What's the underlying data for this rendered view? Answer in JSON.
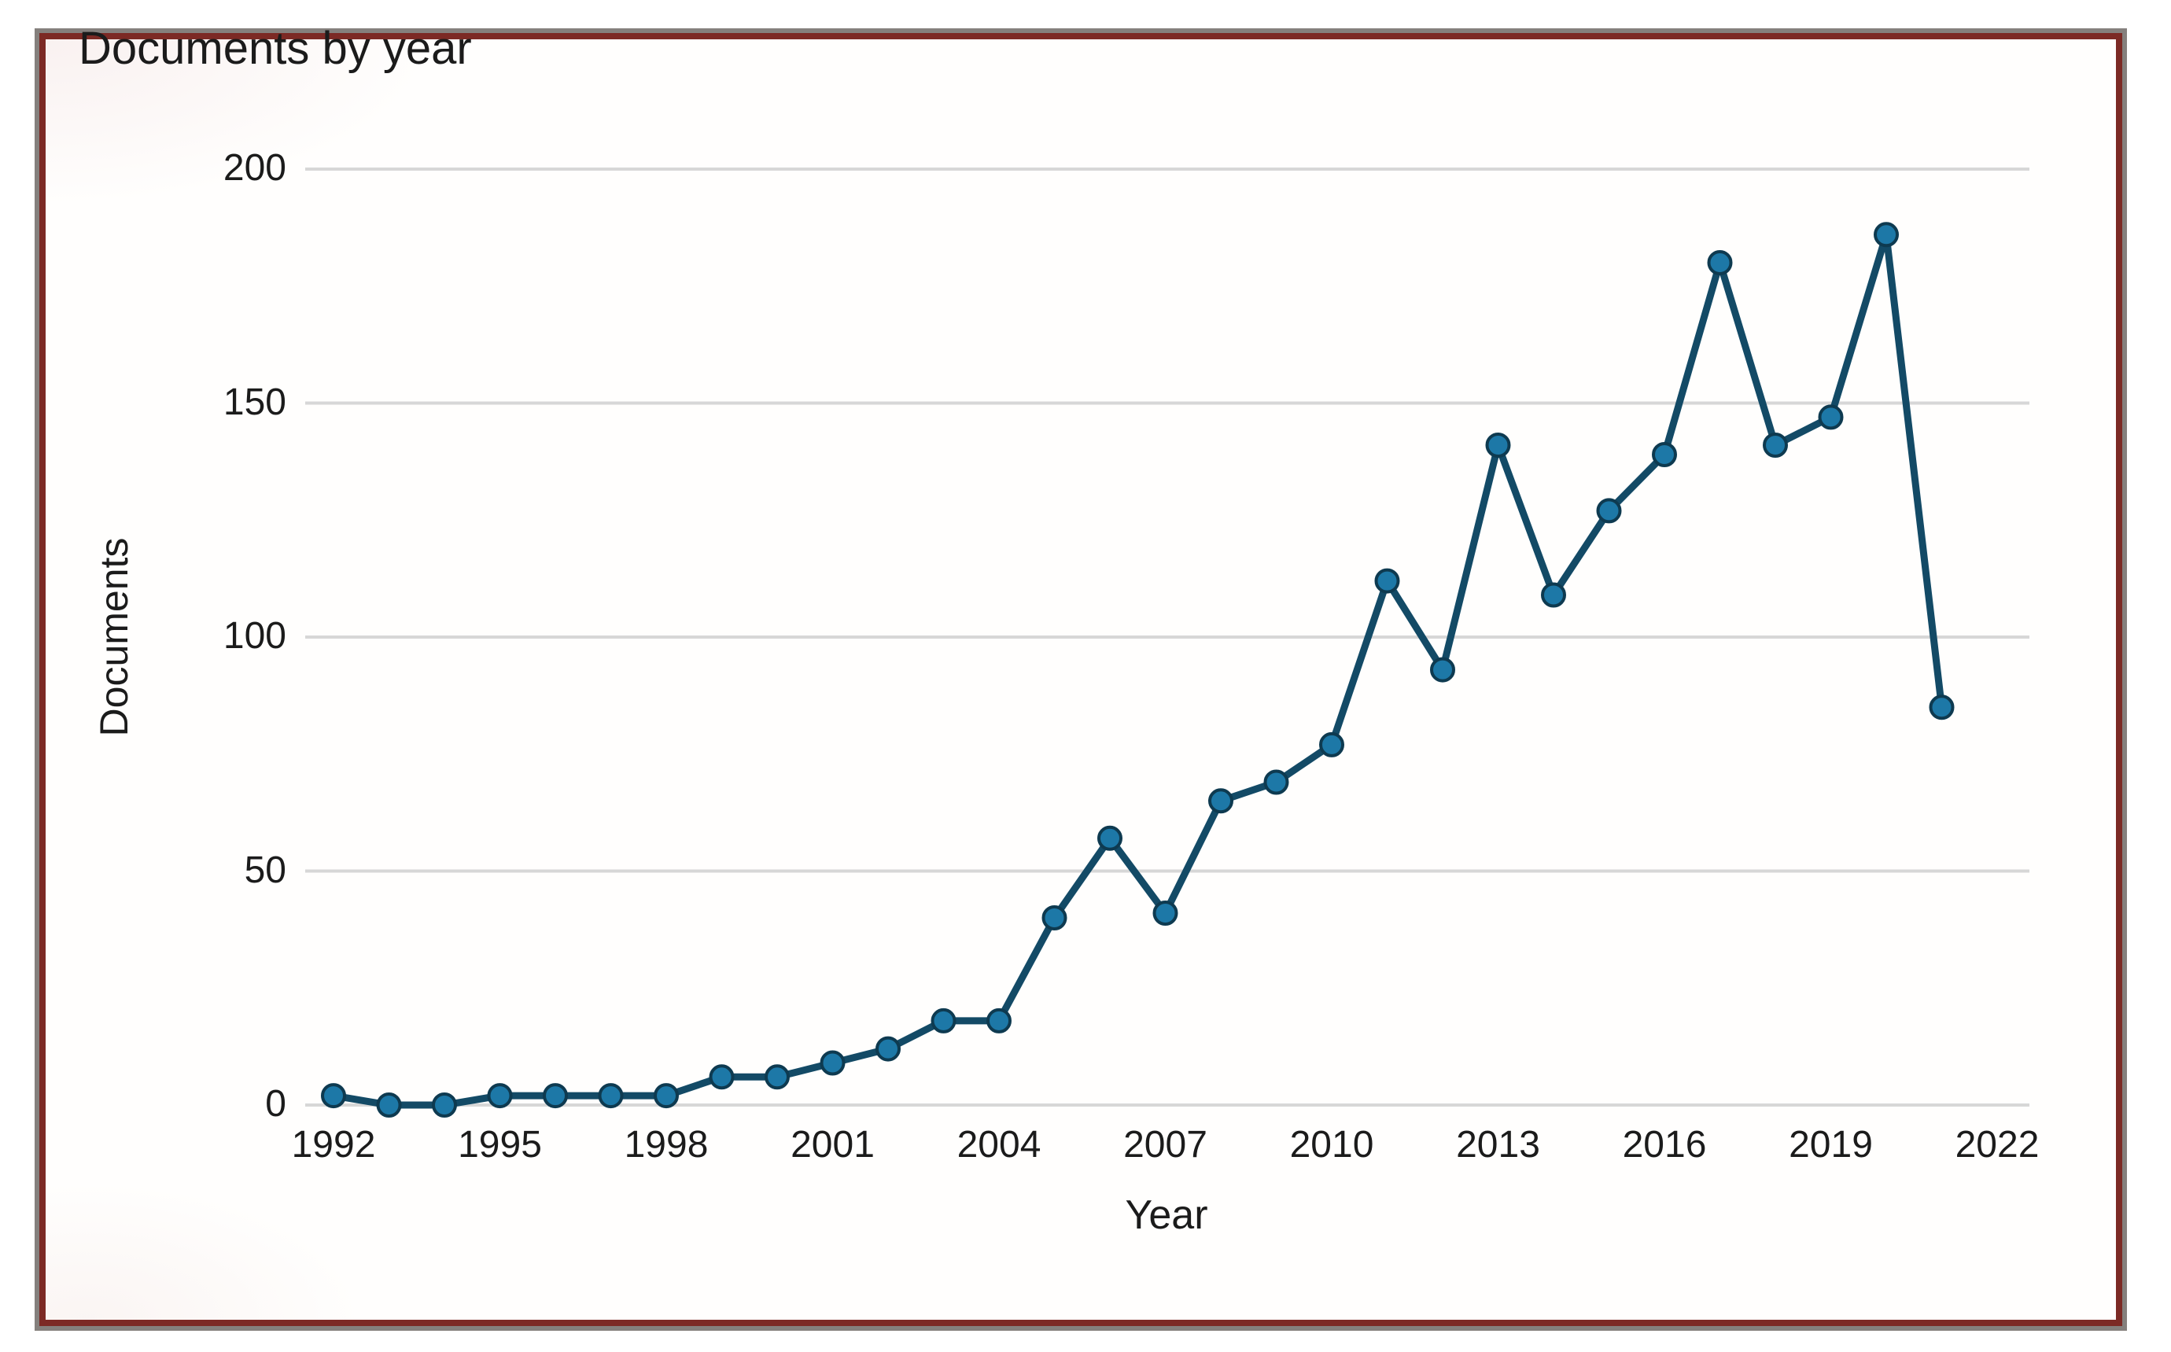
{
  "page": {
    "background": "#ffffff"
  },
  "frame": {
    "border_color": "#7c2a25",
    "outer_edge_color": "#85807d",
    "background": "#fffefd"
  },
  "chart_data": {
    "type": "line",
    "title": "Documents by year",
    "xlabel": "Year",
    "ylabel": "Documents",
    "x": [
      1992,
      1993,
      1994,
      1995,
      1996,
      1997,
      1998,
      1999,
      2000,
      2001,
      2002,
      2003,
      2004,
      2005,
      2006,
      2007,
      2008,
      2009,
      2010,
      2011,
      2012,
      2013,
      2014,
      2015,
      2016,
      2017,
      2018,
      2019,
      2020,
      2021
    ],
    "values": [
      2,
      0,
      0,
      2,
      2,
      2,
      2,
      6,
      6,
      9,
      12,
      18,
      18,
      40,
      57,
      41,
      65,
      69,
      77,
      112,
      93,
      141,
      109,
      127,
      139,
      180,
      141,
      147,
      186,
      85
    ],
    "series_name": "Documents",
    "x_ticks": [
      1992,
      1995,
      1998,
      2001,
      2004,
      2007,
      2010,
      2013,
      2016,
      2019,
      2022
    ],
    "y_ticks": [
      0,
      50,
      100,
      150,
      200
    ],
    "xlim": [
      1992,
      2022
    ],
    "ylim": [
      0,
      200
    ],
    "grid": "horizontal",
    "legend": "none",
    "line_color": "#134a66",
    "marker_fill": "#1d78a7",
    "marker_stroke": "#0e3a50",
    "grid_color": "#d7d7d7",
    "text_color": "#1b1b1b"
  }
}
